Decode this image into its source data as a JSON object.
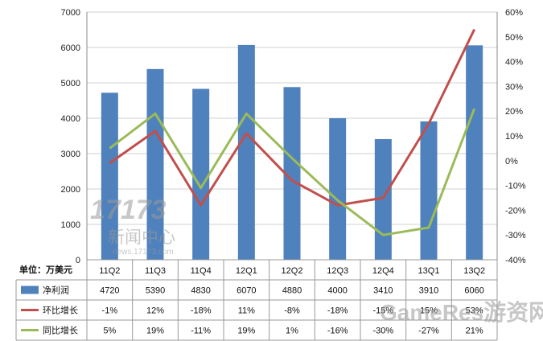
{
  "chart_data": {
    "type": "bar",
    "unit_label": "单位：万美元",
    "categories": [
      "11Q2",
      "11Q3",
      "11Q4",
      "12Q1",
      "12Q2",
      "12Q3",
      "12Q4",
      "13Q1",
      "13Q2"
    ],
    "ylim_left": [
      0,
      7000
    ],
    "ylim_right": [
      -40,
      60
    ],
    "left_ticks": [
      "0",
      "1000",
      "2000",
      "3000",
      "4000",
      "5000",
      "6000",
      "7000"
    ],
    "right_ticks": [
      "-40%",
      "-30%",
      "-20%",
      "-10%",
      "0%",
      "10%",
      "20%",
      "30%",
      "40%",
      "50%",
      "60%"
    ],
    "grid": true,
    "legend_placement": "table",
    "series": [
      {
        "name": "净利润",
        "kind": "bar",
        "color": "#4f81bd",
        "values": [
          4720,
          5390,
          4830,
          6070,
          4880,
          4000,
          3410,
          3910,
          6060
        ],
        "labels": [
          "4720",
          "5390",
          "4830",
          "6070",
          "4880",
          "4000",
          "3410",
          "3910",
          "6060"
        ]
      },
      {
        "name": "环比增长",
        "kind": "line",
        "axis": "right",
        "color": "#c0504d",
        "values": [
          -1,
          12,
          -18,
          11,
          -8,
          -18,
          -15,
          15,
          53
        ],
        "labels": [
          "-1%",
          "12%",
          "-18%",
          "11%",
          "-8%",
          "-18%",
          "-15%",
          "15%",
          "53%"
        ]
      },
      {
        "name": "同比增长",
        "kind": "line",
        "axis": "right",
        "color": "#9bbb59",
        "values": [
          5,
          19,
          -11,
          19,
          1,
          -16,
          -30,
          -27,
          21
        ],
        "labels": [
          "5%",
          "19%",
          "-11%",
          "19%",
          "1%",
          "-16%",
          "-30%",
          "-27%",
          "21%"
        ]
      }
    ]
  },
  "watermarks": {
    "logo_text": "新闻中心",
    "logo_url": "news.17173.com",
    "bottom_text": "GameRes游资网"
  }
}
